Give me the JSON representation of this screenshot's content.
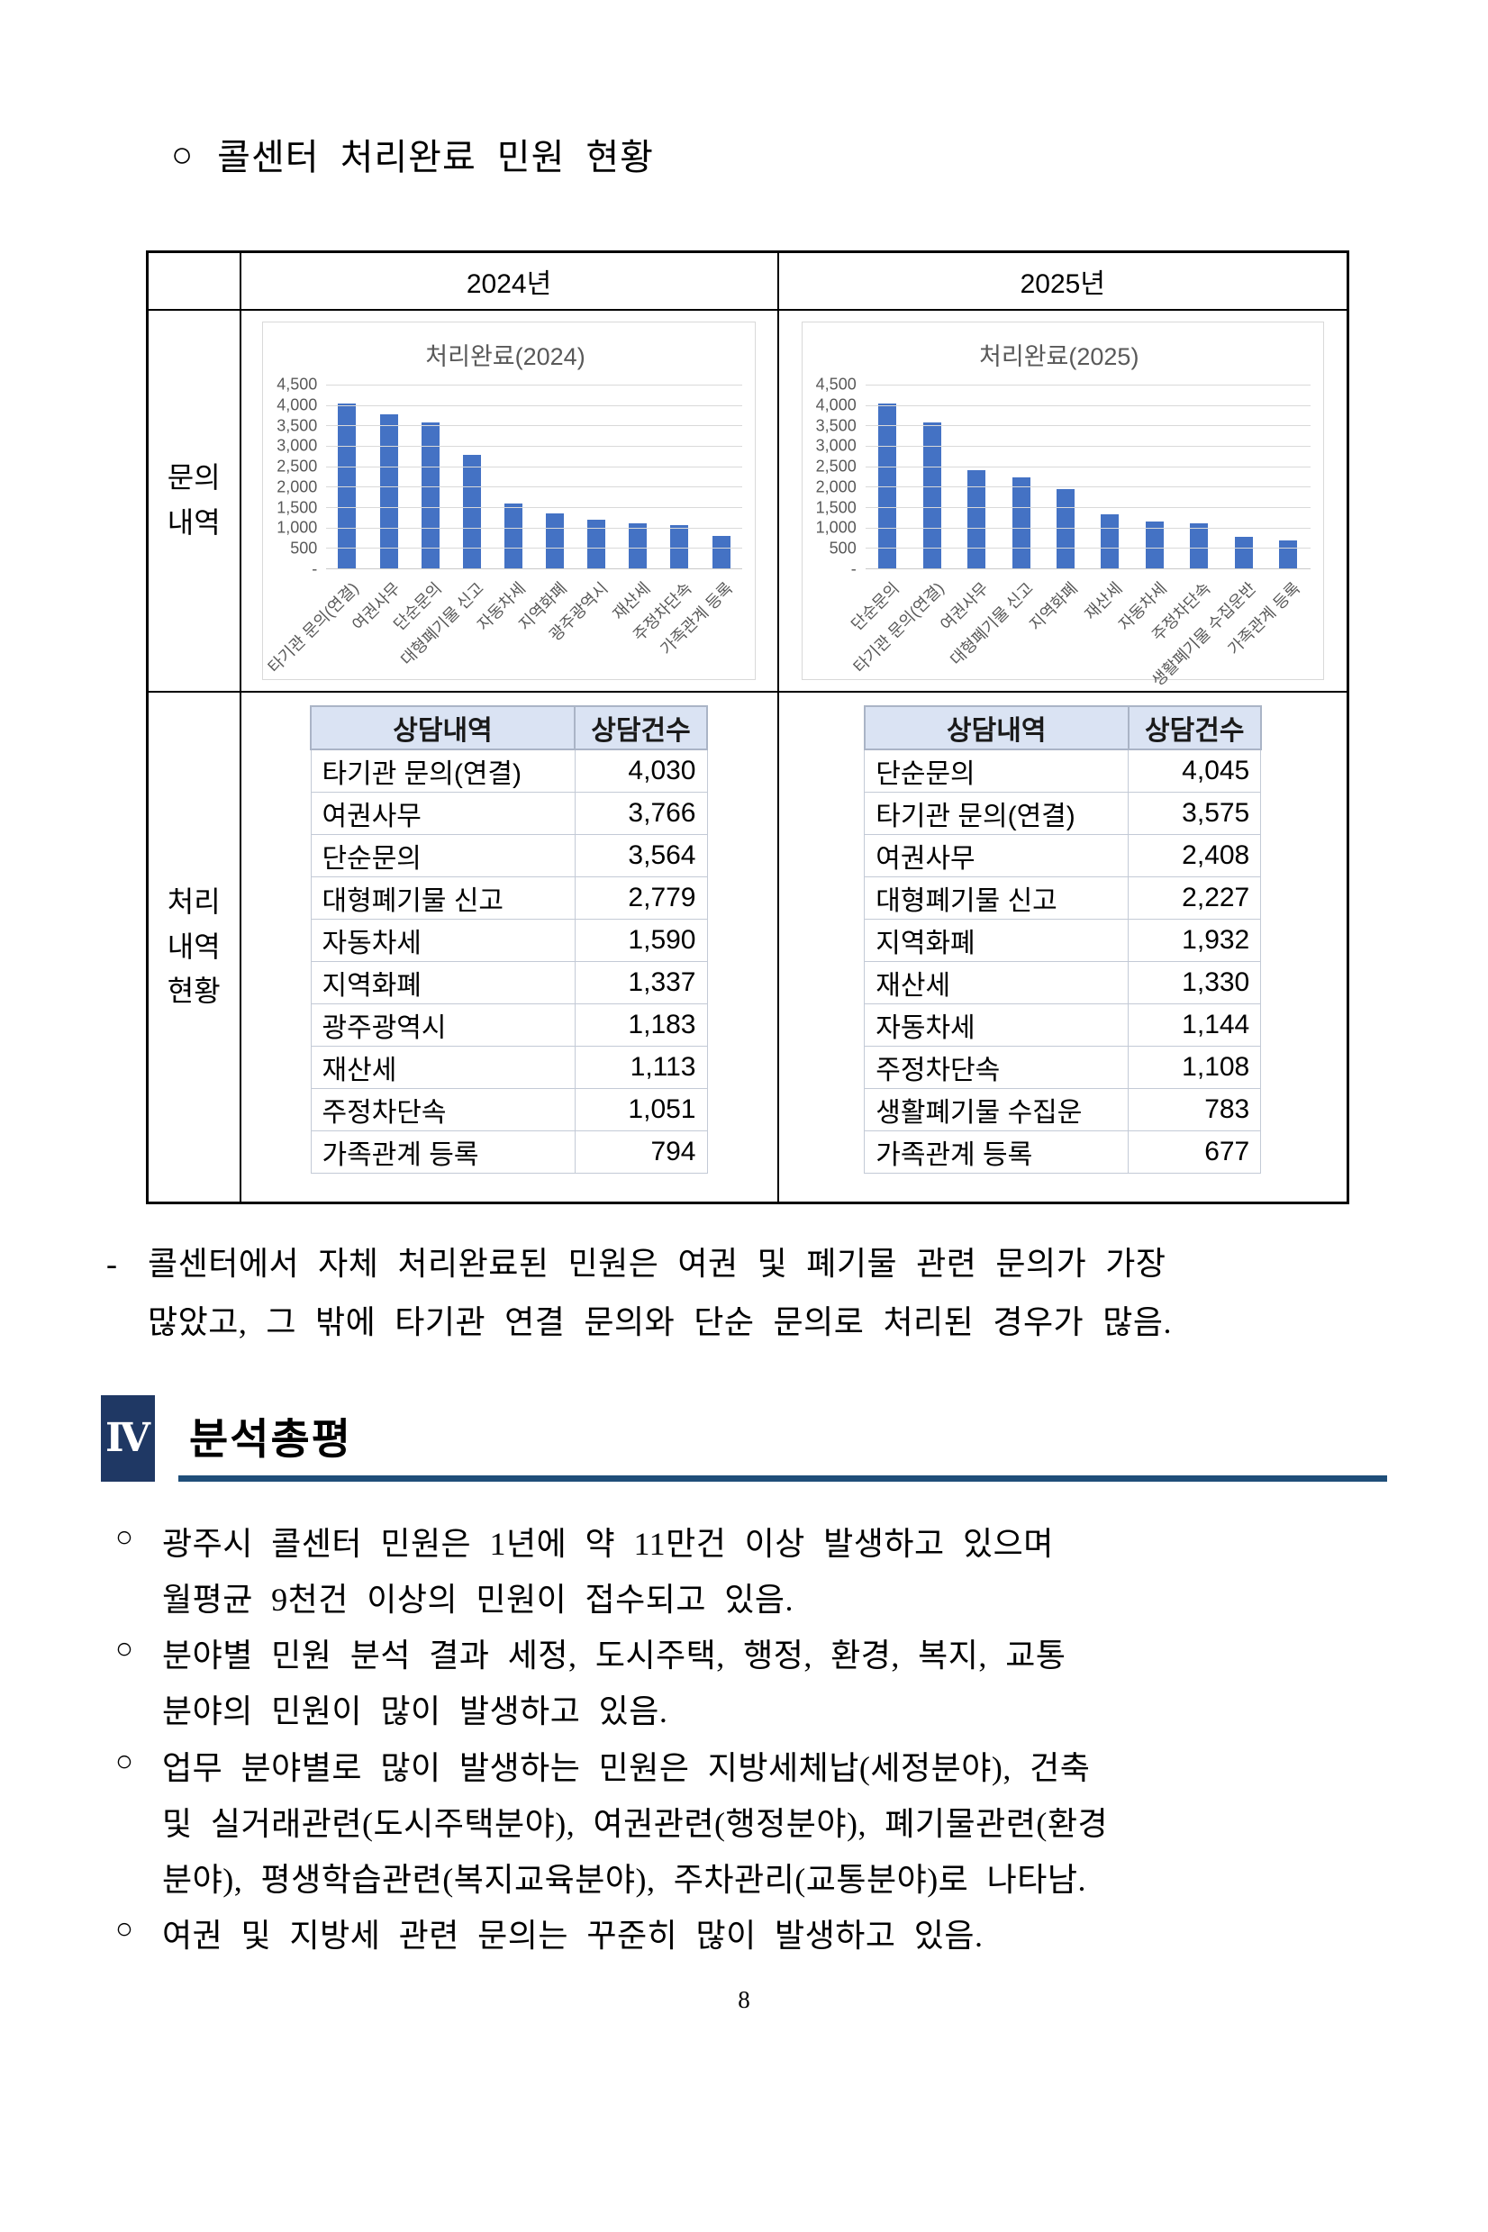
{
  "page": {
    "heading_marker": "○",
    "heading": "콜센터 처리완료 민원 현황",
    "page_number": "8"
  },
  "comparison_table": {
    "corner": "",
    "col_headers": [
      "2024년",
      "2025년"
    ],
    "row_labels": [
      "문의\n내역",
      "처리\n내역\n현황"
    ]
  },
  "chart_data": [
    {
      "type": "bar",
      "title": "처리완료(2024)",
      "categories": [
        "타기관 문의(연결)",
        "여권사무",
        "단순문의",
        "대형폐기물 신고",
        "자동차세",
        "지역화폐",
        "광주광역시",
        "재산세",
        "주정차단속",
        "가족관계 등록"
      ],
      "values": [
        4030,
        3766,
        3564,
        2779,
        1590,
        1337,
        1183,
        1113,
        1051,
        794
      ],
      "ylim": [
        0,
        4500
      ],
      "yticks": [
        "4,500",
        "4,000",
        "3,500",
        "3,000",
        "2,500",
        "2,000",
        "1,500",
        "1,000",
        "500",
        "-"
      ],
      "grid": true,
      "legend": "none",
      "bar_color": "#4472c4",
      "grid_color": "#d9d9d9",
      "text_color": "#595959"
    },
    {
      "type": "bar",
      "title": "처리완료(2025)",
      "categories": [
        "단순문의",
        "타기관 문의(연결)",
        "여권사무",
        "대형폐기물 신고",
        "지역화폐",
        "재산세",
        "자동차세",
        "주정차단속",
        "생활폐기물 수집운반",
        "가족관계 등록"
      ],
      "values": [
        4045,
        3575,
        2408,
        2227,
        1932,
        1330,
        1144,
        1108,
        783,
        677
      ],
      "ylim": [
        0,
        4500
      ],
      "yticks": [
        "4,500",
        "4,000",
        "3,500",
        "3,000",
        "2,500",
        "2,000",
        "1,500",
        "1,000",
        "500",
        "-"
      ],
      "grid": true,
      "legend": "none",
      "bar_color": "#4472c4",
      "grid_color": "#d9d9d9",
      "text_color": "#595959"
    }
  ],
  "detail_tables": [
    {
      "headers": [
        "상담내역",
        "상담건수"
      ],
      "rows": [
        [
          "타기관 문의(연결)",
          "4,030"
        ],
        [
          "여권사무",
          "3,766"
        ],
        [
          "단순문의",
          "3,564"
        ],
        [
          "대형폐기물 신고",
          "2,779"
        ],
        [
          "자동차세",
          "1,590"
        ],
        [
          "지역화폐",
          "1,337"
        ],
        [
          "광주광역시",
          "1,183"
        ],
        [
          "재산세",
          "1,113"
        ],
        [
          "주정차단속",
          "1,051"
        ],
        [
          "가족관계 등록",
          "794"
        ]
      ]
    },
    {
      "headers": [
        "상담내역",
        "상담건수"
      ],
      "rows": [
        [
          "단순문의",
          "4,045"
        ],
        [
          "타기관 문의(연결)",
          "3,575"
        ],
        [
          "여권사무",
          "2,408"
        ],
        [
          "대형폐기물 신고",
          "2,227"
        ],
        [
          "지역화폐",
          "1,932"
        ],
        [
          "재산세",
          "1,330"
        ],
        [
          "자동차세",
          "1,144"
        ],
        [
          "주정차단속",
          "1,108"
        ],
        [
          "생활폐기물 수집운",
          "783"
        ],
        [
          "가족관계 등록",
          "677"
        ]
      ]
    }
  ],
  "note": {
    "dash": "-",
    "text": "콜센터에서 자체 처리완료된 민원은 여권 및 폐기물 관련 문의가 가장\n많았고, 그 밖에 타기관 연결 문의와 단순 문의로 처리된 경우가 많음."
  },
  "section": {
    "numeral": "Ⅳ",
    "title": "분석총평",
    "box_color": "#1f3864",
    "underline_color": "#1f4e79"
  },
  "bullets": [
    {
      "marker": "○",
      "text": "광주시 콜센터 민원은 1년에 약 11만건 이상 발생하고 있으며\n월평균 9천건 이상의 민원이 접수되고 있음."
    },
    {
      "marker": "○",
      "text": "분야별 민원 분석 결과 세정, 도시주택, 행정, 환경, 복지, 교통\n분야의 민원이 많이 발생하고 있음."
    },
    {
      "marker": "○",
      "text": "업무 분야별로 많이 발생하는 민원은 지방세체납(세정분야), 건축\n및 실거래관련(도시주택분야), 여권관련(행정분야), 폐기물관련(환경\n분야), 평생학습관련(복지교육분야), 주차관리(교통분야)로 나타남."
    },
    {
      "marker": "○",
      "text": "여권 및 지방세 관련 문의는 꾸준히 많이 발생하고 있음."
    }
  ]
}
